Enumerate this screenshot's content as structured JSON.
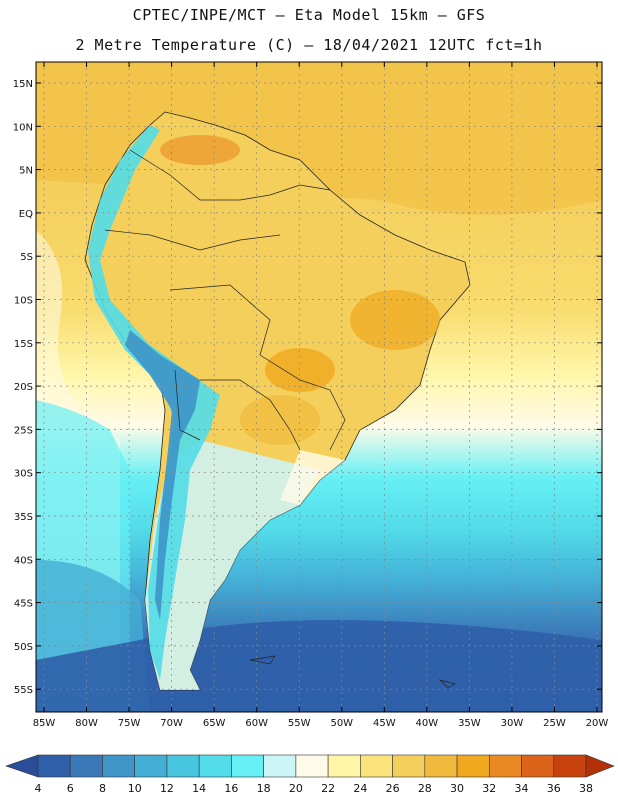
{
  "header": {
    "line1": "CPTEC/INPE/MCT –   Eta Model 15km – GFS",
    "line2": "2 Metre Temperature (C) – 18/04/2021 12UTC fct=1h"
  },
  "map": {
    "lat_labels": [
      "15N",
      "10N",
      "5N",
      "EQ",
      "5S",
      "10S",
      "15S",
      "20S",
      "25S",
      "30S",
      "35S",
      "40S",
      "45S",
      "50S",
      "55S"
    ],
    "lon_labels": [
      "85W",
      "80W",
      "75W",
      "70W",
      "65W",
      "60W",
      "55W",
      "50W",
      "45W",
      "40W",
      "35W",
      "30W",
      "25W",
      "20W"
    ]
  },
  "colorbar": {
    "labels": [
      "4",
      "6",
      "8",
      "10",
      "12",
      "14",
      "16",
      "18",
      "20",
      "22",
      "24",
      "26",
      "28",
      "30",
      "32",
      "34",
      "36",
      "38"
    ],
    "colors": [
      "#2f5fa8",
      "#3a78b8",
      "#3f95c8",
      "#44afd6",
      "#48c5df",
      "#52dbe9",
      "#66f0f5",
      "#ccf5f8",
      "#fffbe8",
      "#fff6a8",
      "#fce47c",
      "#f5cf5c",
      "#f0bb3c",
      "#f0a81e",
      "#ea8a22",
      "#dc6418",
      "#c8420e"
    ],
    "under_color": "#2a4d98",
    "over_color": "#b43008"
  }
}
